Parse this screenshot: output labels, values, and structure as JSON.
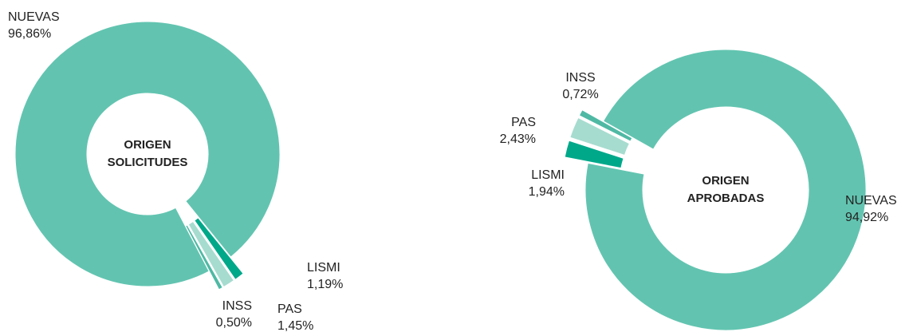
{
  "chart_data": [
    {
      "type": "donut",
      "center_label": [
        "ORIGEN",
        "SOLICITUDES"
      ],
      "categories": [
        "LISMI",
        "PAS",
        "INSS",
        "NUEVAS"
      ],
      "values": [
        1.19,
        1.45,
        0.5,
        96.86
      ],
      "value_labels": [
        "1,19%",
        "1,45%",
        "0,50%",
        "96,86%"
      ],
      "colors": [
        "#00a88a",
        "#a6dccf",
        "#4fb9a4",
        "#62c4b0"
      ]
    },
    {
      "type": "donut",
      "center_label": [
        "ORIGEN",
        "APROBADAS"
      ],
      "categories": [
        "LISMI",
        "PAS",
        "INSS",
        "NUEVAS"
      ],
      "values": [
        1.94,
        2.43,
        0.72,
        94.92
      ],
      "value_labels": [
        "1,94%",
        "2,43%",
        "0,72%",
        "94,92%"
      ],
      "colors": [
        "#00a88a",
        "#a6dccf",
        "#4fb9a4",
        "#62c4b0"
      ]
    }
  ]
}
